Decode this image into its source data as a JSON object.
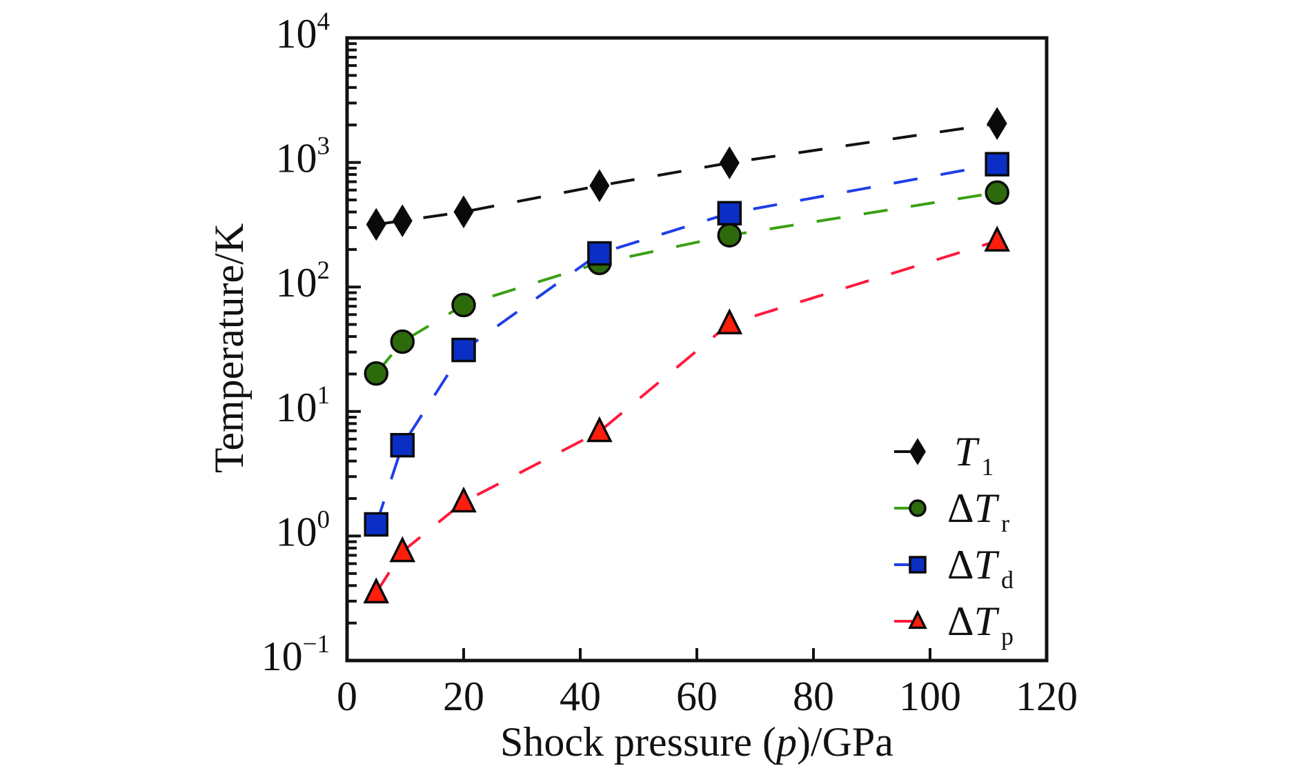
{
  "chart_data": {
    "type": "line",
    "title": "",
    "xlabel": "Shock pressure (p)/GPa",
    "xlabel_parts": [
      "Shock pressure (",
      "p",
      ")/GPa"
    ],
    "ylabel": "Temperature/K",
    "xlim": [
      0,
      120
    ],
    "ylim": [
      0.1,
      10000
    ],
    "yscale": "log",
    "grid": false,
    "legend_position": "bottom-right",
    "x_ticks": [
      0,
      20,
      40,
      60,
      80,
      100,
      120
    ],
    "x_tick_labels": [
      "0",
      "20",
      "40",
      "60",
      "80",
      "100",
      "120"
    ],
    "y_ticks": [
      {
        "value": 0.1,
        "base": "10",
        "exp": "−1"
      },
      {
        "value": 1,
        "base": "10",
        "exp": "0"
      },
      {
        "value": 10,
        "base": "10",
        "exp": "1"
      },
      {
        "value": 100,
        "base": "10",
        "exp": "2"
      },
      {
        "value": 1000,
        "base": "10",
        "exp": "3"
      },
      {
        "value": 10000,
        "base": "10",
        "exp": "4"
      }
    ],
    "series": [
      {
        "name": "T1",
        "label_prefix": "",
        "label_main": "T",
        "label_sub": "1",
        "marker": "diamond",
        "line_color": "#111111",
        "marker_fill": "#0a0a0a",
        "x": [
          5,
          9.5,
          20,
          43.3,
          65.6,
          111.5
        ],
        "y": [
          318,
          340,
          401,
          651,
          993,
          2055
        ]
      },
      {
        "name": "ΔTr",
        "label_prefix": "Δ",
        "label_main": "T",
        "label_sub": "r",
        "marker": "circle",
        "line_color": "#3aa012",
        "marker_fill": "#2d6a0c",
        "x": [
          5,
          9.5,
          20,
          43.3,
          65.6,
          111.5
        ],
        "y": [
          20.2,
          36.4,
          71.6,
          156,
          260,
          573
        ]
      },
      {
        "name": "ΔTd",
        "label_prefix": "Δ",
        "label_main": "T",
        "label_sub": "d",
        "marker": "square",
        "line_color": "#1f3fe6",
        "marker_fill": "#0b2fc4",
        "x": [
          5,
          9.5,
          20,
          43.3,
          65.6,
          111.5
        ],
        "y": [
          1.24,
          5.36,
          31.2,
          186,
          391,
          968
        ]
      },
      {
        "name": "ΔTp",
        "label_prefix": "Δ",
        "label_main": "T",
        "label_sub": "p",
        "marker": "triangle",
        "line_color": "#ff1a3c",
        "marker_fill": "#ff1e0c",
        "x": [
          5,
          9.5,
          20,
          43.3,
          65.6,
          111.5
        ],
        "y": [
          0.35,
          0.75,
          1.88,
          6.9,
          50.7,
          234
        ]
      }
    ]
  }
}
